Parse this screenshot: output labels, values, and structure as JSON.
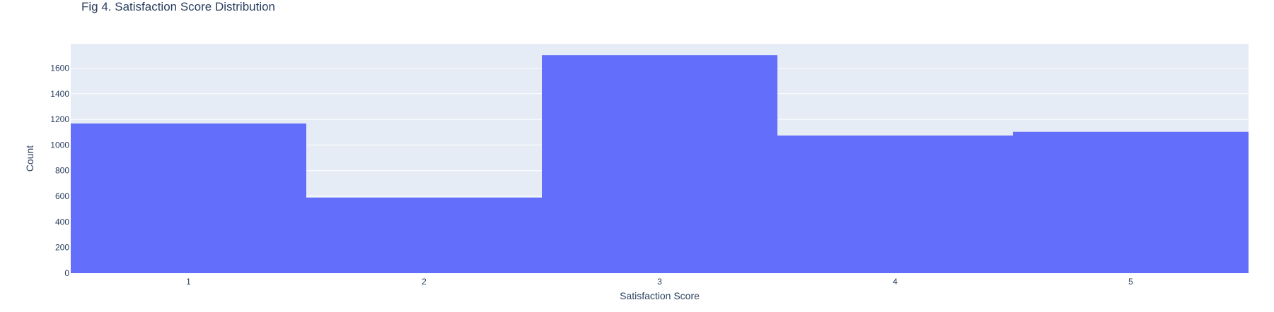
{
  "chart_data": {
    "type": "bar",
    "title": "Fig 4. Satisfaction Score Distribution",
    "xlabel": "Satisfaction Score",
    "ylabel": "Count",
    "categories": [
      "1",
      "2",
      "3",
      "4",
      "5"
    ],
    "values": [
      1168,
      590,
      1701,
      1074,
      1103
    ],
    "ylim": [
      0,
      1790
    ],
    "yticks": [
      0,
      200,
      400,
      600,
      800,
      1000,
      1200,
      1400,
      1600
    ],
    "grid": true,
    "colors": {
      "bar": "#636efa",
      "plot_bg": "#e5ecf6",
      "grid": "#ffffff",
      "text": "#2a3f5f"
    }
  }
}
